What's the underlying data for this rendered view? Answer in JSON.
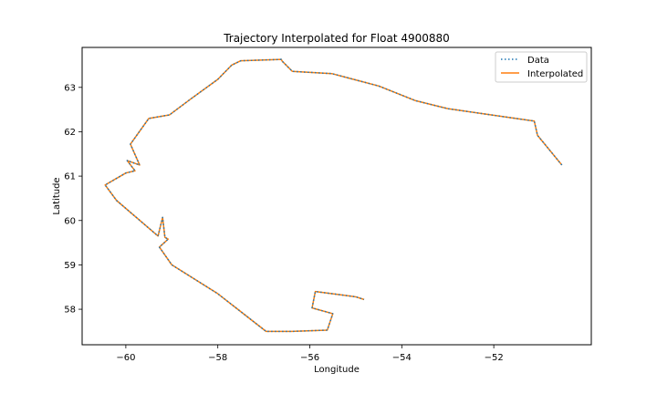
{
  "chart_data": {
    "type": "line",
    "title": "Trajectory Interpolated for Float 4900880",
    "xlabel": "Longitude",
    "ylabel": "Latitude",
    "xlim": [
      -60.95,
      -49.88
    ],
    "ylim": [
      57.2,
      63.9
    ],
    "xticks": [
      {
        "value": -60,
        "label": "−60"
      },
      {
        "value": -58,
        "label": "−58"
      },
      {
        "value": -56,
        "label": "−56"
      },
      {
        "value": -54,
        "label": "−54"
      },
      {
        "value": -52,
        "label": "−52"
      }
    ],
    "yticks": [
      {
        "value": 58,
        "label": "58"
      },
      {
        "value": 59,
        "label": "59"
      },
      {
        "value": 60,
        "label": "60"
      },
      {
        "value": 61,
        "label": "61"
      },
      {
        "value": 62,
        "label": "62"
      },
      {
        "value": 63,
        "label": "63"
      }
    ],
    "grid": false,
    "legend_position": "upper right",
    "series": [
      {
        "name": "Data",
        "style": "dotted",
        "color": "#1f77b4",
        "x": [
          -50.52,
          -51.05,
          -51.12,
          -53.0,
          -53.7,
          -54.5,
          -55.52,
          -56.38,
          -56.6,
          -56.62,
          -57.5,
          -57.7,
          -58.0,
          -58.6,
          -59.05,
          -59.5,
          -59.9,
          -59.7,
          -59.97,
          -59.8,
          -60.0,
          -60.45,
          -60.2,
          -59.3,
          -59.2,
          -59.15,
          -59.08,
          -59.27,
          -59.0,
          -58.0,
          -56.95,
          -56.4,
          -55.62,
          -55.5,
          -55.95,
          -55.88,
          -55.0,
          -54.82
        ],
        "y": [
          61.25,
          61.92,
          62.24,
          62.52,
          62.7,
          63.03,
          63.31,
          63.36,
          63.59,
          63.63,
          63.6,
          63.5,
          63.18,
          62.73,
          62.38,
          62.3,
          61.72,
          61.25,
          61.35,
          61.12,
          61.07,
          60.8,
          60.45,
          59.65,
          60.07,
          59.62,
          59.58,
          59.4,
          59.0,
          58.35,
          57.5,
          57.5,
          57.53,
          57.9,
          58.03,
          58.4,
          58.28,
          58.22
        ]
      },
      {
        "name": "Interpolated",
        "style": "solid",
        "color": "#ff7f0e",
        "x": [
          -50.52,
          -51.05,
          -51.12,
          -53.0,
          -53.7,
          -54.5,
          -55.52,
          -56.38,
          -56.6,
          -56.62,
          -57.5,
          -57.7,
          -58.0,
          -58.6,
          -59.05,
          -59.5,
          -59.9,
          -59.7,
          -59.97,
          -59.8,
          -60.0,
          -60.45,
          -60.2,
          -59.3,
          -59.2,
          -59.15,
          -59.08,
          -59.27,
          -59.0,
          -58.0,
          -56.95,
          -56.4,
          -55.62,
          -55.5,
          -55.95,
          -55.88,
          -55.0,
          -54.82
        ],
        "y": [
          61.25,
          61.92,
          62.24,
          62.52,
          62.7,
          63.03,
          63.31,
          63.36,
          63.59,
          63.63,
          63.6,
          63.5,
          63.18,
          62.73,
          62.38,
          62.3,
          61.72,
          61.25,
          61.35,
          61.12,
          61.07,
          60.8,
          60.45,
          59.65,
          60.07,
          59.62,
          59.58,
          59.4,
          59.0,
          58.35,
          57.5,
          57.5,
          57.53,
          57.9,
          58.03,
          58.4,
          58.28,
          58.22
        ]
      }
    ]
  }
}
